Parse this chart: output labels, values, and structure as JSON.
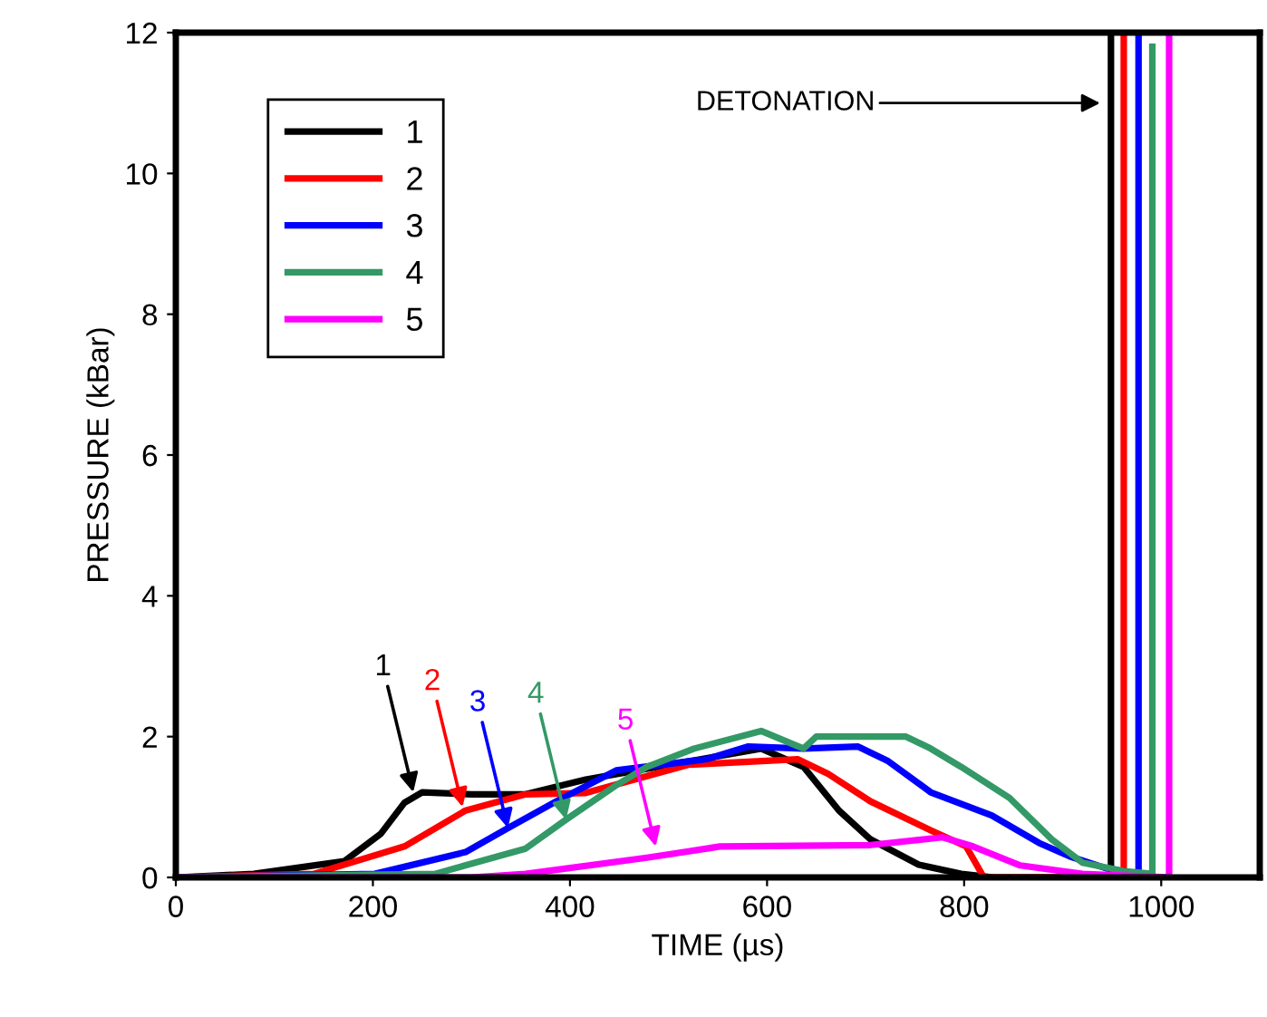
{
  "chart_data": {
    "type": "line",
    "xlabel": "TIME (µs)",
    "ylabel": "PRESSURE (kBar)",
    "xlim": [
      0,
      1100
    ],
    "xticks": [
      0,
      200,
      400,
      600,
      800,
      1000
    ],
    "ylim": [
      0,
      12
    ],
    "yticks": [
      0,
      2,
      4,
      6,
      8,
      10,
      12
    ],
    "grid": false,
    "legend": "top left",
    "marker": "none",
    "line_style": "solid",
    "series": [
      {
        "name": "1",
        "color": "#000000",
        "x": [
          0,
          79,
          171,
          208,
          232,
          250,
          300,
          355,
          416,
          594,
          637,
          673,
          705,
          754,
          797,
          830,
          949,
          949
        ],
        "values": [
          0,
          0.05,
          0.23,
          0.62,
          1.06,
          1.21,
          1.18,
          1.18,
          1.39,
          1.83,
          1.57,
          0.95,
          0.54,
          0.18,
          0.05,
          0,
          0,
          12
        ]
      },
      {
        "name": "2",
        "color": "#ff0000",
        "x": [
          0,
          140,
          232,
          294,
          355,
          416,
          520,
          631,
          662,
          705,
          766,
          802,
          820,
          962,
          962
        ],
        "values": [
          0,
          0.05,
          0.44,
          0.95,
          1.18,
          1.2,
          1.6,
          1.68,
          1.47,
          1.08,
          0.67,
          0.44,
          0,
          0,
          12
        ]
      },
      {
        "name": "3",
        "color": "#0000ff",
        "x": [
          0,
          202,
          294,
          337,
          386,
          447,
          539,
          581,
          637,
          692,
          723,
          766,
          828,
          876,
          907,
          944,
          977,
          977
        ],
        "values": [
          0,
          0.05,
          0.36,
          0.7,
          1.08,
          1.52,
          1.68,
          1.86,
          1.83,
          1.86,
          1.65,
          1.21,
          0.88,
          0.49,
          0.3,
          0.13,
          0.05,
          12
        ]
      },
      {
        "name": "4",
        "color": "#339966",
        "x": [
          0,
          263,
          355,
          396,
          447,
          478,
          526,
          594,
          637,
          650,
          741,
          766,
          797,
          846,
          889,
          920,
          962,
          991,
          991
        ],
        "values": [
          0,
          0.05,
          0.41,
          0.82,
          1.31,
          1.57,
          1.83,
          2.08,
          1.83,
          2.0,
          2.0,
          1.83,
          1.57,
          1.13,
          0.54,
          0.21,
          0.09,
          0.05,
          11.8
        ]
      },
      {
        "name": "5",
        "color": "#ff00ff",
        "x": [
          0,
          300,
          355,
          478,
          539,
          552,
          705,
          778,
          809,
          857,
          920,
          1008,
          1008
        ],
        "values": [
          0,
          0,
          0.05,
          0.28,
          0.41,
          0.44,
          0.46,
          0.57,
          0.44,
          0.17,
          0.05,
          0,
          12
        ]
      }
    ],
    "annotations": [
      {
        "text": "1",
        "x": 241,
        "y": 1.21
      },
      {
        "text": "2",
        "x": 291,
        "y": 1.0
      },
      {
        "text": "3",
        "x": 337,
        "y": 0.7
      },
      {
        "text": "4",
        "x": 396,
        "y": 0.82
      },
      {
        "text": "5",
        "x": 487,
        "y": 0.44
      },
      {
        "text": "DETONATION",
        "x": 938,
        "y": 11
      }
    ]
  }
}
